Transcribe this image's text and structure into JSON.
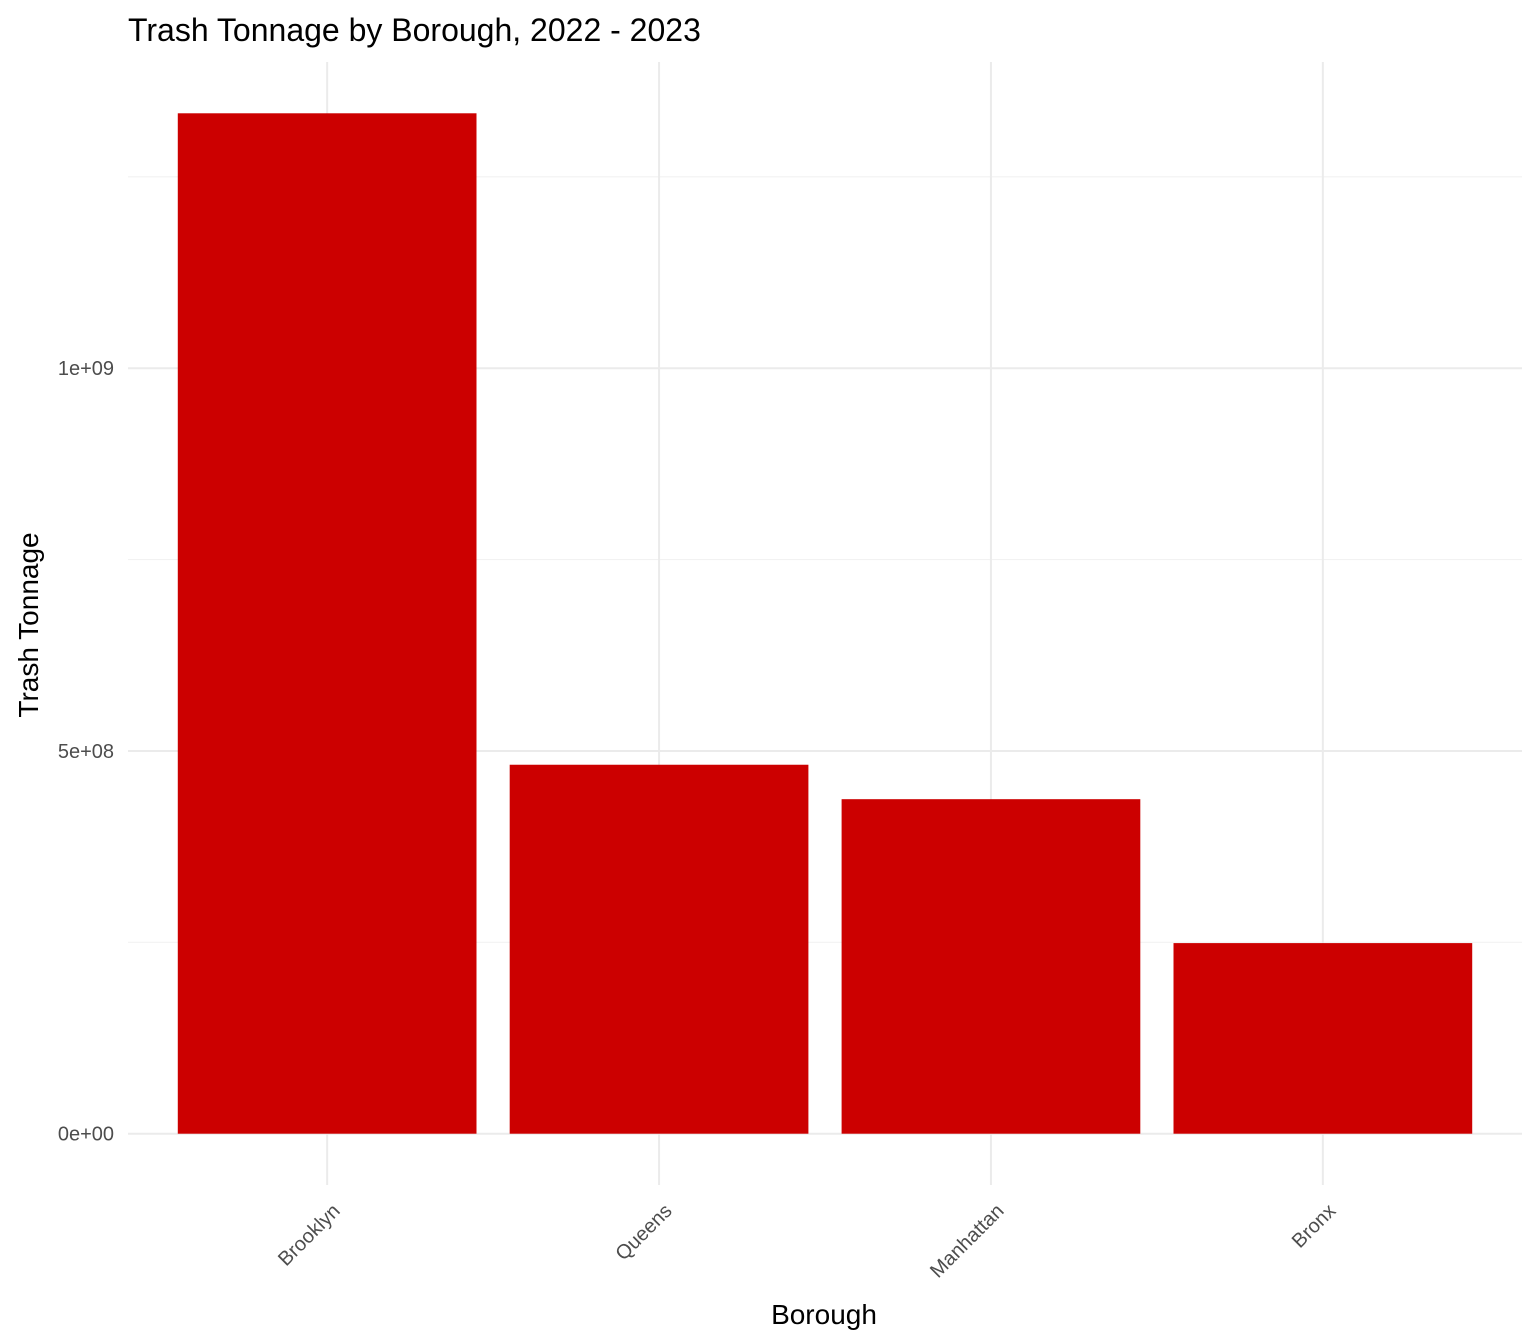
{
  "chart_data": {
    "type": "bar",
    "title": "Trash Tonnage by Borough, 2022 - 2023",
    "xlabel": "Borough",
    "ylabel": "Trash Tonnage",
    "categories": [
      "Brooklyn",
      "Queens",
      "Manhattan",
      "Bronx"
    ],
    "values": [
      1333000000,
      482000000,
      437000000,
      249000000
    ],
    "ylim": [
      -67000000,
      1400000000
    ],
    "yticks": [
      0,
      500000000,
      1000000000
    ],
    "ytick_labels": [
      "0e+00",
      "5e+08",
      "1e+09"
    ],
    "y_minor_ticks": [
      250000000,
      750000000,
      1250000000
    ],
    "xtick_label_rotation": -45,
    "grid": true,
    "legend": "none",
    "bar_color": "#CC0000",
    "grid_color": "#EBEBEB",
    "background": "#FFFFFF"
  }
}
